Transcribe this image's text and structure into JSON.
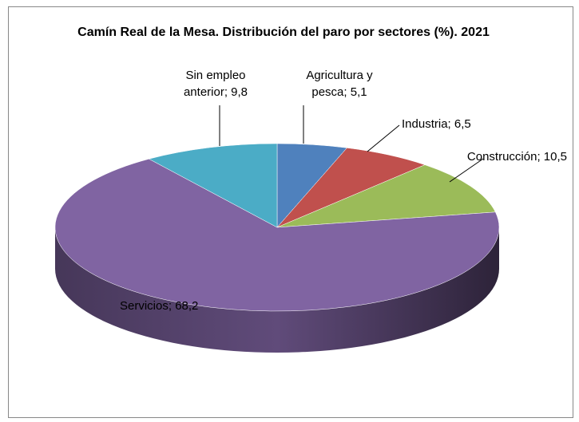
{
  "chart_data": {
    "type": "pie",
    "title": "Camín Real de la Mesa. Distribución del paro por sectores (%). 2021",
    "categories": [
      "Agricultura y pesca",
      "Industria",
      "Construcción",
      "Servicios",
      "Sin empleo anterior"
    ],
    "values": [
      5.1,
      6.5,
      10.5,
      68.2,
      9.8
    ],
    "value_labels": [
      "5,1",
      "6,5",
      "10,5",
      "68,2",
      "9,8"
    ],
    "label_separator": ";",
    "colors": [
      "#4f81bd",
      "#c0504d",
      "#9bbb59",
      "#8064a2",
      "#4bacc6"
    ]
  }
}
